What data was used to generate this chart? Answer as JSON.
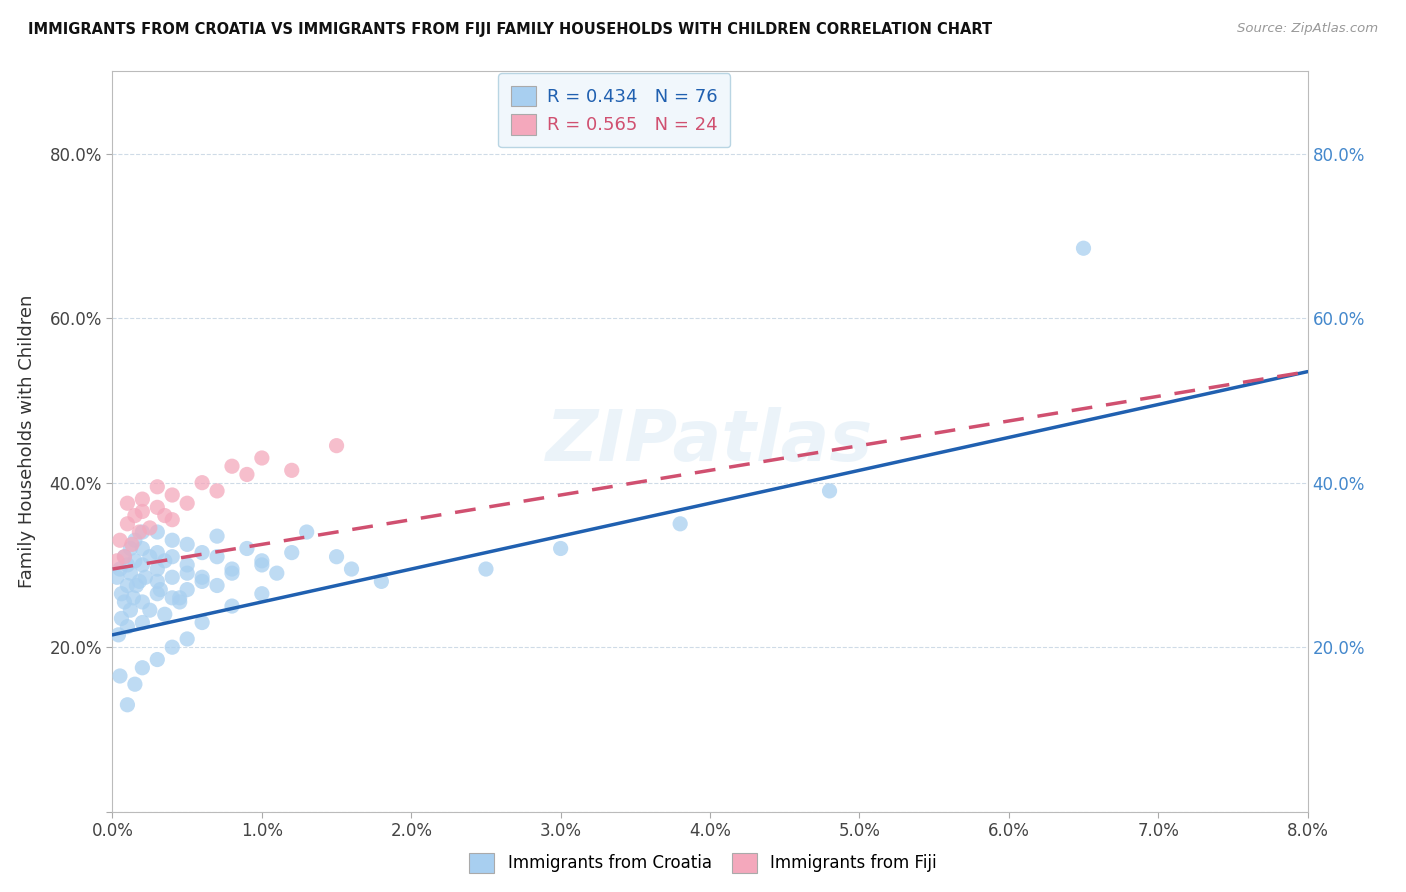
{
  "title": "IMMIGRANTS FROM CROATIA VS IMMIGRANTS FROM FIJI FAMILY HOUSEHOLDS WITH CHILDREN CORRELATION CHART",
  "source": "Source: ZipAtlas.com",
  "ylabel_label": "Family Households with Children",
  "xlim": [
    0.0,
    0.08
  ],
  "ylim": [
    0.0,
    0.9
  ],
  "xticks": [
    0.0,
    0.01,
    0.02,
    0.03,
    0.04,
    0.05,
    0.06,
    0.07,
    0.08
  ],
  "yticks": [
    0.0,
    0.2,
    0.4,
    0.6,
    0.8
  ],
  "ytick_labels": [
    "",
    "20.0%",
    "40.0%",
    "60.0%",
    "80.0%"
  ],
  "xtick_labels": [
    "0.0%",
    "1.0%",
    "2.0%",
    "3.0%",
    "4.0%",
    "5.0%",
    "6.0%",
    "7.0%",
    "8.0%"
  ],
  "croatia_R": 0.434,
  "croatia_N": 76,
  "fiji_R": 0.565,
  "fiji_N": 24,
  "croatia_color": "#a8cff0",
  "fiji_color": "#f4a8bc",
  "croatia_line_color": "#2060b0",
  "fiji_line_color": "#d05070",
  "croatia_trendline_x0": 0.0,
  "croatia_trendline_y0": 0.215,
  "croatia_trendline_x1": 0.08,
  "croatia_trendline_y1": 0.535,
  "fiji_trendline_x0": 0.0,
  "fiji_trendline_y0": 0.295,
  "fiji_trendline_x1": 0.08,
  "fiji_trendline_y1": 0.535,
  "croatia_scatter_x": [
    0.0003,
    0.0005,
    0.0006,
    0.0008,
    0.001,
    0.001,
    0.0012,
    0.0012,
    0.0015,
    0.0015,
    0.0018,
    0.002,
    0.002,
    0.002,
    0.0022,
    0.0025,
    0.003,
    0.003,
    0.003,
    0.0032,
    0.0035,
    0.004,
    0.004,
    0.004,
    0.0045,
    0.005,
    0.005,
    0.005,
    0.006,
    0.006,
    0.007,
    0.007,
    0.008,
    0.009,
    0.01,
    0.011,
    0.012,
    0.013,
    0.015,
    0.016,
    0.0004,
    0.0006,
    0.0008,
    0.001,
    0.0012,
    0.0014,
    0.0016,
    0.002,
    0.002,
    0.0025,
    0.003,
    0.003,
    0.0035,
    0.004,
    0.0045,
    0.005,
    0.006,
    0.007,
    0.008,
    0.01,
    0.0005,
    0.001,
    0.0015,
    0.002,
    0.003,
    0.004,
    0.005,
    0.006,
    0.008,
    0.01,
    0.018,
    0.025,
    0.03,
    0.038,
    0.048,
    0.065
  ],
  "croatia_scatter_y": [
    0.285,
    0.295,
    0.265,
    0.31,
    0.3,
    0.275,
    0.32,
    0.29,
    0.305,
    0.33,
    0.28,
    0.3,
    0.32,
    0.34,
    0.285,
    0.31,
    0.295,
    0.315,
    0.34,
    0.27,
    0.305,
    0.285,
    0.31,
    0.33,
    0.26,
    0.3,
    0.325,
    0.29,
    0.315,
    0.28,
    0.31,
    0.335,
    0.295,
    0.32,
    0.305,
    0.29,
    0.315,
    0.34,
    0.31,
    0.295,
    0.215,
    0.235,
    0.255,
    0.225,
    0.245,
    0.26,
    0.275,
    0.23,
    0.255,
    0.245,
    0.265,
    0.28,
    0.24,
    0.26,
    0.255,
    0.27,
    0.285,
    0.275,
    0.29,
    0.3,
    0.165,
    0.13,
    0.155,
    0.175,
    0.185,
    0.2,
    0.21,
    0.23,
    0.25,
    0.265,
    0.28,
    0.295,
    0.32,
    0.35,
    0.39,
    0.685
  ],
  "fiji_scatter_x": [
    0.0003,
    0.0005,
    0.0008,
    0.001,
    0.001,
    0.0013,
    0.0015,
    0.0018,
    0.002,
    0.002,
    0.0025,
    0.003,
    0.003,
    0.0035,
    0.004,
    0.004,
    0.005,
    0.006,
    0.007,
    0.008,
    0.009,
    0.01,
    0.012,
    0.015
  ],
  "fiji_scatter_y": [
    0.305,
    0.33,
    0.31,
    0.35,
    0.375,
    0.325,
    0.36,
    0.34,
    0.365,
    0.38,
    0.345,
    0.37,
    0.395,
    0.36,
    0.385,
    0.355,
    0.375,
    0.4,
    0.39,
    0.42,
    0.41,
    0.43,
    0.415,
    0.445
  ]
}
